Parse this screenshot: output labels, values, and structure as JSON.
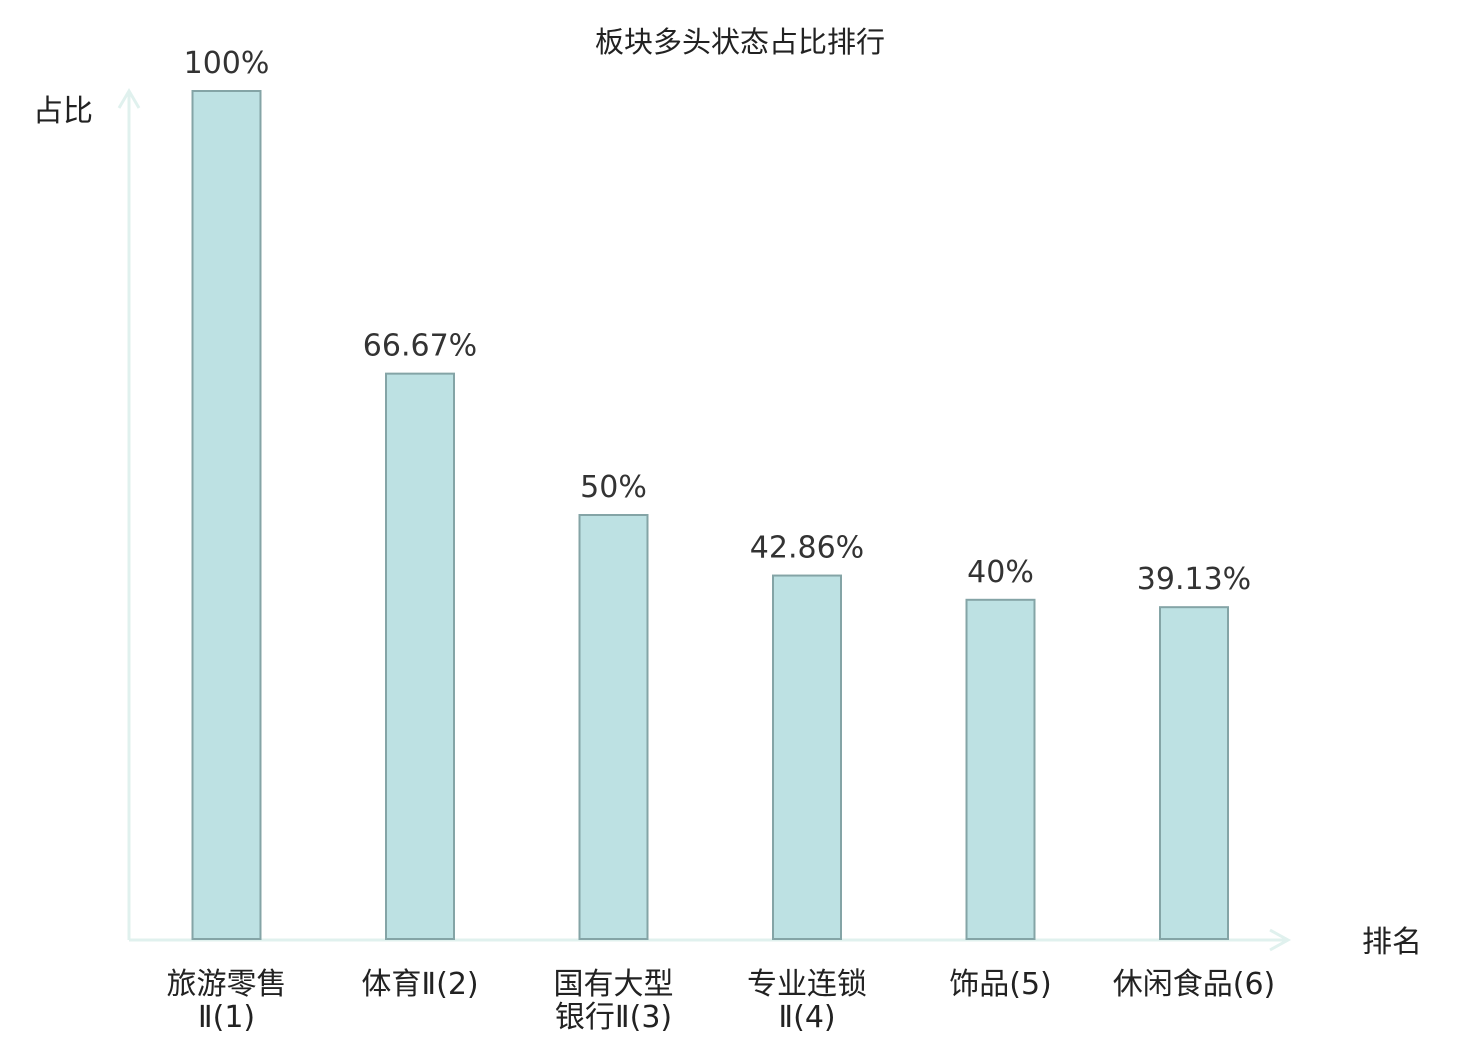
{
  "chart_data": {
    "type": "bar",
    "title": "板块多头状态占比排行",
    "ylabel": "占比",
    "xlabel": "排名",
    "ylim": [
      0,
      100
    ],
    "grid": false,
    "bar_color": "#bde1e3",
    "bar_border_color": "#84a4a6",
    "axis_color": "#e0f1ee",
    "highlight_color": "#e8191b",
    "categories": [
      {
        "lines": [
          "旅游零售",
          "Ⅱ(1)"
        ],
        "highlight": false
      },
      {
        "lines": [
          "体育Ⅱ(2)"
        ],
        "highlight": false
      },
      {
        "lines": [
          "国有大型",
          "银行Ⅱ(3)"
        ],
        "highlight": false
      },
      {
        "lines": [
          "专业连锁",
          "Ⅱ(4)"
        ],
        "highlight": false
      },
      {
        "lines": [
          "饰品(5)"
        ],
        "highlight": false
      },
      {
        "lines": [
          "休闲食品(6)"
        ],
        "highlight": true
      }
    ],
    "values": [
      100,
      66.67,
      50,
      42.86,
      40,
      39.13
    ],
    "value_labels": [
      "100%",
      "66.67%",
      "50%",
      "42.86%",
      "40%",
      "39.13%"
    ]
  }
}
